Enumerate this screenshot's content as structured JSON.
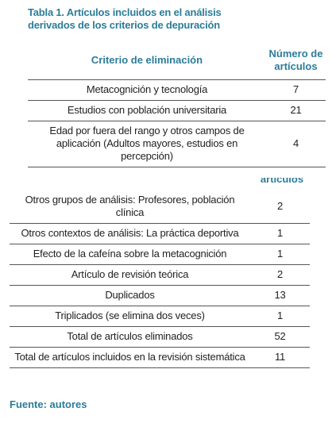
{
  "header": {
    "title": "Tabla 1. Artículos incluidos en el análisis derivados de los criterios de depuración",
    "columns": [
      "Criterio de eliminación",
      "Número de artículos"
    ]
  },
  "table": {
    "rows": [
      [
        "Metacognición y tecnología",
        "7"
      ],
      [
        "Estudios con población universitaria",
        "21"
      ],
      [
        "Edad por fuera del rango y otros campos de aplicación (Adultos mayores, estudios en percepción)",
        "4"
      ]
    ]
  },
  "fragment": "artículos",
  "table2": {
    "rows": [
      [
        "Otros grupos de análisis: Profesores, población clínica",
        "2"
      ],
      [
        "Otros contextos de análisis: La práctica deportiva",
        "1"
      ],
      [
        "Efecto de la cafeína sobre la metacognición",
        "1"
      ],
      [
        "Artículo de revisión teórica",
        "2"
      ],
      [
        "Duplicados",
        "13"
      ],
      [
        "Triplicados (se elimina dos veces)",
        "1"
      ],
      [
        "Total de artículos eliminados",
        "52"
      ],
      [
        "Total de artículos incluidos en la revisión sistemática",
        "11"
      ]
    ]
  },
  "source": "Fuente: autores"
}
